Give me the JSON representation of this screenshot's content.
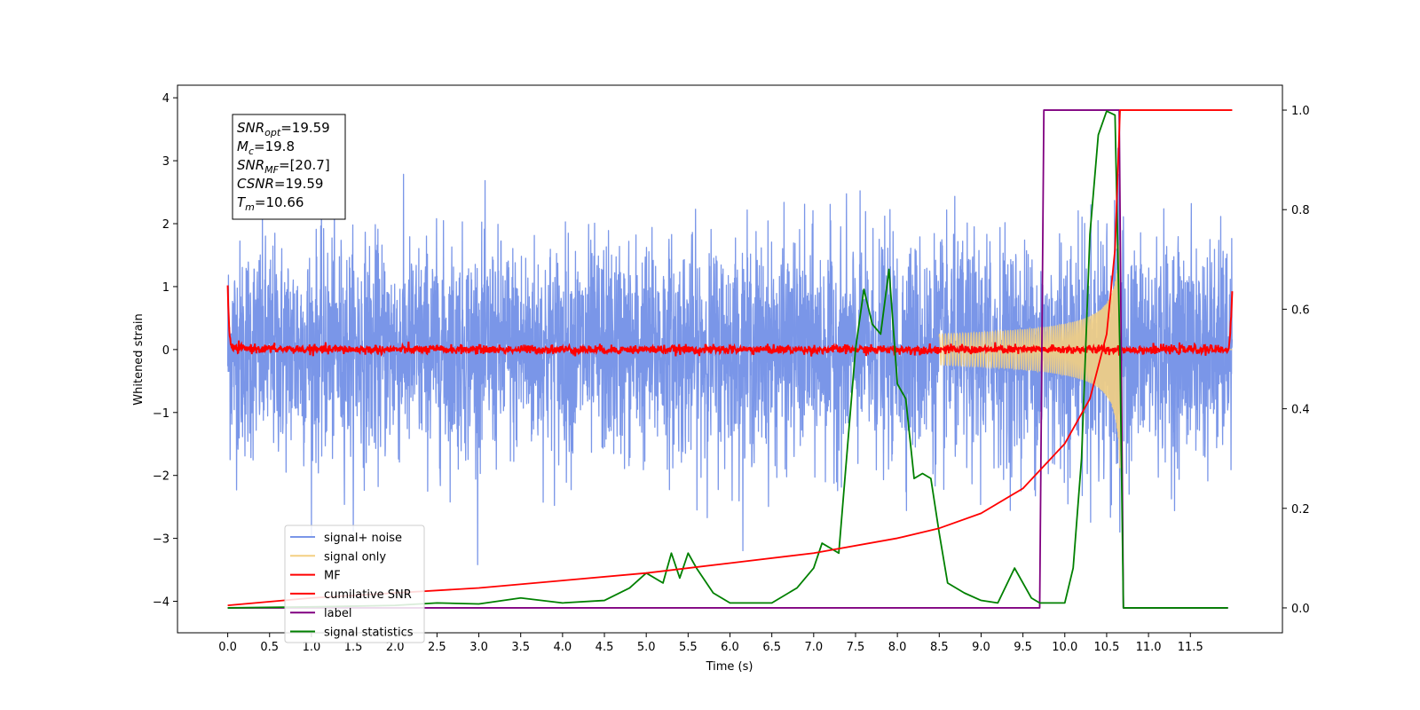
{
  "chart_data": {
    "type": "line",
    "xlabel": "Time (s)",
    "ylabel": "Whitened strain",
    "xlim": [
      -0.6,
      12.6
    ],
    "ylim": [
      -4.5,
      4.2
    ],
    "y2lim": [
      -0.05,
      1.05
    ],
    "x_ticks": [
      "0.0",
      "0.5",
      "1.0",
      "1.5",
      "2.0",
      "2.5",
      "3.0",
      "3.5",
      "4.0",
      "4.5",
      "5.0",
      "5.5",
      "6.0",
      "6.5",
      "7.0",
      "7.5",
      "8.0",
      "8.5",
      "9.0",
      "9.5",
      "10.0",
      "10.5",
      "11.0",
      "11.5"
    ],
    "y_ticks": [
      "−4",
      "−3",
      "−2",
      "−1",
      "0",
      "1",
      "2",
      "3",
      "4"
    ],
    "y2_ticks": [
      "0.0",
      "0.2",
      "0.4",
      "0.6",
      "0.8",
      "1.0"
    ],
    "annotation": [
      {
        "base": "SNR",
        "sub": "opt",
        "value": "=19.59"
      },
      {
        "base": "M",
        "sub": "c",
        "value": "=19.8"
      },
      {
        "base": "SNR",
        "sub": "MF",
        "value": "=[20.7]"
      },
      {
        "base": "CSNR",
        "sub": "",
        "value": "=19.59"
      },
      {
        "base": "T",
        "sub": "m",
        "value": "=10.66"
      }
    ],
    "legend_position": "lower-left",
    "series": [
      {
        "name": "signal+ noise",
        "color": "#7a96e8",
        "axis": "left",
        "description_values": {
          "x_range": [
            0,
            12
          ],
          "amplitude_approx": 2.2
        }
      },
      {
        "name": "signal only",
        "color": "#f3cf82",
        "axis": "left",
        "chirp": {
          "t_merge": 10.66,
          "peak_amplitude": 2.0,
          "start_time": 8.5
        }
      },
      {
        "name": "MF",
        "color": "#ff0000",
        "axis": "left",
        "x": [
          0.0,
          0.02,
          0.05,
          1.0,
          6.0,
          11.95,
          11.98,
          12.0
        ],
        "y": [
          1.0,
          0.2,
          0.02,
          0.0,
          0.0,
          0.0,
          0.3,
          0.9
        ]
      },
      {
        "name": "cumilative SNR",
        "color": "#ff0000",
        "axis": "right",
        "x": [
          0.0,
          1.0,
          2.0,
          3.0,
          4.0,
          5.0,
          6.0,
          7.0,
          8.0,
          8.5,
          9.0,
          9.5,
          10.0,
          10.3,
          10.5,
          10.6,
          10.66,
          12.0
        ],
        "y": [
          0.005,
          0.02,
          0.03,
          0.04,
          0.055,
          0.07,
          0.09,
          0.11,
          0.14,
          0.16,
          0.19,
          0.24,
          0.33,
          0.42,
          0.55,
          0.72,
          1.0,
          1.0
        ]
      },
      {
        "name": "label",
        "color": "#800080",
        "axis": "right",
        "x": [
          0.0,
          9.7,
          9.75,
          10.65,
          10.7,
          11.95
        ],
        "y": [
          0.0,
          0.0,
          1.0,
          1.0,
          0.0,
          0.0
        ]
      },
      {
        "name": "signal statistics",
        "color": "#008000",
        "axis": "right",
        "x": [
          0.0,
          1.0,
          2.0,
          2.5,
          3.0,
          3.5,
          4.0,
          4.5,
          4.8,
          5.0,
          5.2,
          5.3,
          5.4,
          5.5,
          5.6,
          5.8,
          6.0,
          6.5,
          6.8,
          7.0,
          7.1,
          7.2,
          7.3,
          7.5,
          7.6,
          7.7,
          7.8,
          7.9,
          8.0,
          8.1,
          8.2,
          8.3,
          8.4,
          8.5,
          8.6,
          8.8,
          9.0,
          9.2,
          9.4,
          9.6,
          9.7,
          10.0,
          10.1,
          10.2,
          10.3,
          10.4,
          10.5,
          10.6,
          10.66,
          10.7,
          11.0,
          11.95
        ],
        "y": [
          0.0,
          0.002,
          0.005,
          0.01,
          0.008,
          0.02,
          0.01,
          0.015,
          0.04,
          0.07,
          0.05,
          0.11,
          0.06,
          0.11,
          0.08,
          0.03,
          0.01,
          0.01,
          0.04,
          0.08,
          0.13,
          0.12,
          0.11,
          0.52,
          0.64,
          0.57,
          0.55,
          0.68,
          0.45,
          0.42,
          0.26,
          0.27,
          0.26,
          0.15,
          0.05,
          0.03,
          0.015,
          0.01,
          0.08,
          0.02,
          0.01,
          0.01,
          0.08,
          0.3,
          0.75,
          0.95,
          0.998,
          0.99,
          0.5,
          0.0,
          0.0,
          0.0
        ]
      }
    ]
  }
}
